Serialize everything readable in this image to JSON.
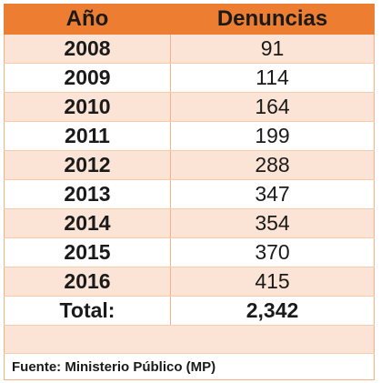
{
  "table": {
    "headers": {
      "year": "Año",
      "count": "Denuncias"
    },
    "rows": [
      {
        "year": "2008",
        "count": "91"
      },
      {
        "year": "2009",
        "count": "114"
      },
      {
        "year": "2010",
        "count": "164"
      },
      {
        "year": "2011",
        "count": "199"
      },
      {
        "year": "2012",
        "count": "288"
      },
      {
        "year": "2013",
        "count": "347"
      },
      {
        "year": "2014",
        "count": "354"
      },
      {
        "year": "2015",
        "count": "370"
      },
      {
        "year": "2016",
        "count": "415"
      }
    ],
    "total": {
      "label": "Total:",
      "value": "2,342"
    },
    "source": "Fuente: Ministerio Público (MP)"
  },
  "colors": {
    "header_bg": "#ed7d31",
    "row_alt_bg": "#fbe4d5",
    "text": "#1a1a1a"
  }
}
